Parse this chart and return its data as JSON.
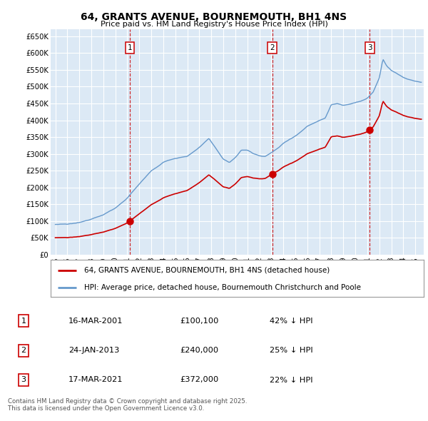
{
  "title": "64, GRANTS AVENUE, BOURNEMOUTH, BH1 4NS",
  "subtitle": "Price paid vs. HM Land Registry's House Price Index (HPI)",
  "legend_property": "64, GRANTS AVENUE, BOURNEMOUTH, BH1 4NS (detached house)",
  "legend_hpi": "HPI: Average price, detached house, Bournemouth Christchurch and Poole",
  "ylabel_ticks": [
    "£0",
    "£50K",
    "£100K",
    "£150K",
    "£200K",
    "£250K",
    "£300K",
    "£350K",
    "£400K",
    "£450K",
    "£500K",
    "£550K",
    "£600K",
    "£650K"
  ],
  "ytick_values": [
    0,
    50000,
    100000,
    150000,
    200000,
    250000,
    300000,
    350000,
    400000,
    450000,
    500000,
    550000,
    600000,
    650000
  ],
  "ymax": 670000,
  "background_color": "#dce9f5",
  "grid_color": "#ffffff",
  "property_line_color": "#cc0000",
  "hpi_line_color": "#6699cc",
  "vline_color": "#cc0000",
  "sale_dates_decimal": [
    2001.21,
    2013.07,
    2021.21
  ],
  "sale_prices": [
    100100,
    240000,
    372000
  ],
  "sale_nums": [
    "1",
    "2",
    "3"
  ],
  "row_data": [
    [
      "1",
      "16-MAR-2001",
      "£100,100",
      "42% ↓ HPI"
    ],
    [
      "2",
      "24-JAN-2013",
      "£240,000",
      "25% ↓ HPI"
    ],
    [
      "3",
      "17-MAR-2021",
      "£372,000",
      "22% ↓ HPI"
    ]
  ],
  "footnote": "Contains HM Land Registry data © Crown copyright and database right 2025.\nThis data is licensed under the Open Government Licence v3.0."
}
